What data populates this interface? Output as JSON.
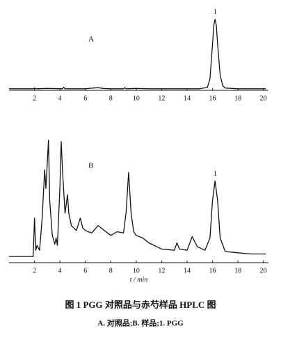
{
  "caption": {
    "title": "图 1   PGG 对照品与赤芍样品 HPLC 图",
    "legend": "A. 对照品;B. 样品;1. PGG"
  },
  "chart_data": [
    {
      "type": "line",
      "label": "A",
      "x": [
        0,
        1,
        1.9,
        2,
        2.1,
        3,
        4.2,
        4.3,
        4.4,
        5,
        6,
        6.6,
        7,
        7.4,
        8,
        9,
        9.1,
        9.2,
        10,
        11,
        12,
        13,
        14,
        15,
        15.6,
        15.8,
        16.0,
        16.1,
        16.2,
        16.3,
        16.4,
        16.6,
        16.8,
        17,
        18,
        19,
        20.2
      ],
      "values": [
        2,
        2,
        2,
        3,
        2,
        2.5,
        2,
        4,
        2,
        2,
        2,
        3,
        3.5,
        2.5,
        2,
        2,
        3.5,
        2,
        2.5,
        2,
        2,
        2,
        2,
        2,
        4,
        15,
        60,
        85,
        93,
        85,
        60,
        20,
        6,
        3,
        2,
        2,
        2
      ],
      "color": "#111111",
      "annotations": [
        {
          "text": "1",
          "x": 16.2
        }
      ],
      "xlim": [
        0,
        20.4
      ],
      "xticks": [
        2,
        4,
        6,
        8,
        10,
        12,
        14,
        16,
        18,
        20
      ],
      "ylim": [
        0,
        100
      ]
    },
    {
      "type": "line",
      "label": "B",
      "xlabel": "t / min",
      "x": [
        0,
        1,
        1.9,
        2.0,
        2.1,
        2.2,
        2.4,
        2.6,
        2.8,
        2.9,
        3.0,
        3.1,
        3.2,
        3.4,
        3.6,
        3.7,
        3.8,
        4.0,
        4.1,
        4.2,
        4.4,
        4.6,
        4.7,
        4.9,
        5.1,
        5.3,
        5.6,
        5.8,
        6,
        6.5,
        7,
        7.5,
        8,
        8.5,
        9,
        9.2,
        9.4,
        9.6,
        9.8,
        10,
        10.5,
        11,
        12,
        13,
        13.2,
        13.4,
        14,
        14.4,
        14.8,
        15.4,
        15.8,
        16.0,
        16.2,
        16.4,
        16.6,
        17,
        18,
        19,
        20.2
      ],
      "values": [
        5,
        5,
        5,
        36,
        10,
        14,
        10,
        35,
        75,
        60,
        80,
        99,
        50,
        22,
        15,
        20,
        14,
        60,
        98,
        75,
        40,
        55,
        40,
        30,
        28,
        26,
        36,
        28,
        26,
        24,
        30,
        26,
        22,
        25,
        24,
        40,
        73,
        40,
        25,
        22,
        20,
        16,
        11,
        10,
        16,
        11,
        10,
        21,
        13,
        10,
        20,
        50,
        66,
        50,
        20,
        9,
        8,
        7,
        7
      ],
      "color": "#111111",
      "annotations": [
        {
          "text": "1",
          "x": 16.2
        }
      ],
      "xlim": [
        0,
        20.4
      ],
      "xticks": [
        2,
        4,
        6,
        8,
        10,
        12,
        14,
        16,
        18,
        20
      ],
      "ylim": [
        0,
        100
      ]
    }
  ]
}
